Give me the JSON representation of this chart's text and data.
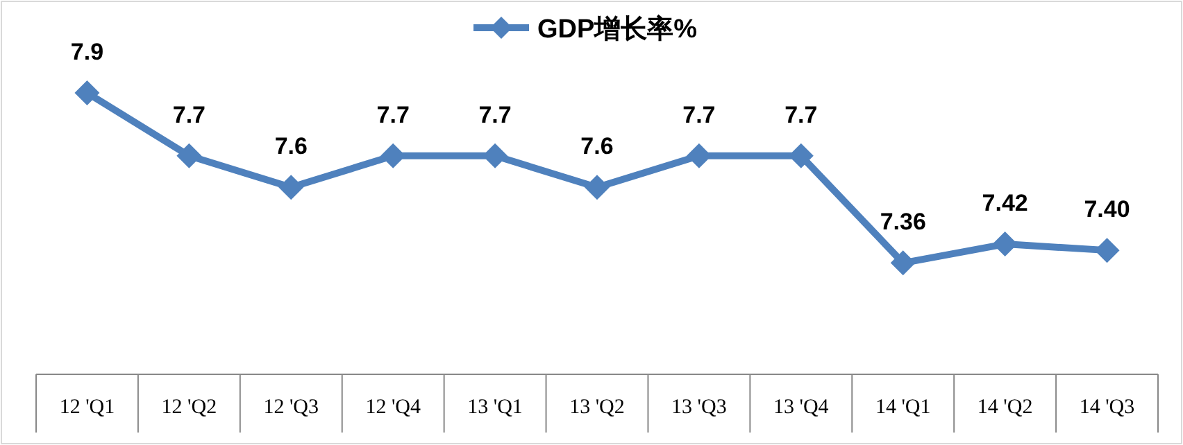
{
  "chart_data": {
    "type": "line",
    "categories": [
      "12 'Q1",
      "12 'Q2",
      "12 'Q3",
      "12 'Q4",
      "13 'Q1",
      "13 'Q2",
      "13 'Q3",
      "13 'Q4",
      "14 'Q1",
      "14 'Q2",
      "14 'Q3"
    ],
    "series": [
      {
        "name": "GDP增长率%",
        "color": "#4f81bd",
        "values": [
          7.9,
          7.7,
          7.6,
          7.7,
          7.7,
          7.6,
          7.7,
          7.7,
          7.36,
          7.42,
          7.4
        ],
        "value_labels": [
          "7.9",
          "7.7",
          "7.6",
          "7.7",
          "7.7",
          "7.6",
          "7.7",
          "7.7",
          "7.36",
          "7.42",
          "7.40"
        ]
      }
    ],
    "marker": "diamond",
    "legend": "top",
    "grid": false
  }
}
